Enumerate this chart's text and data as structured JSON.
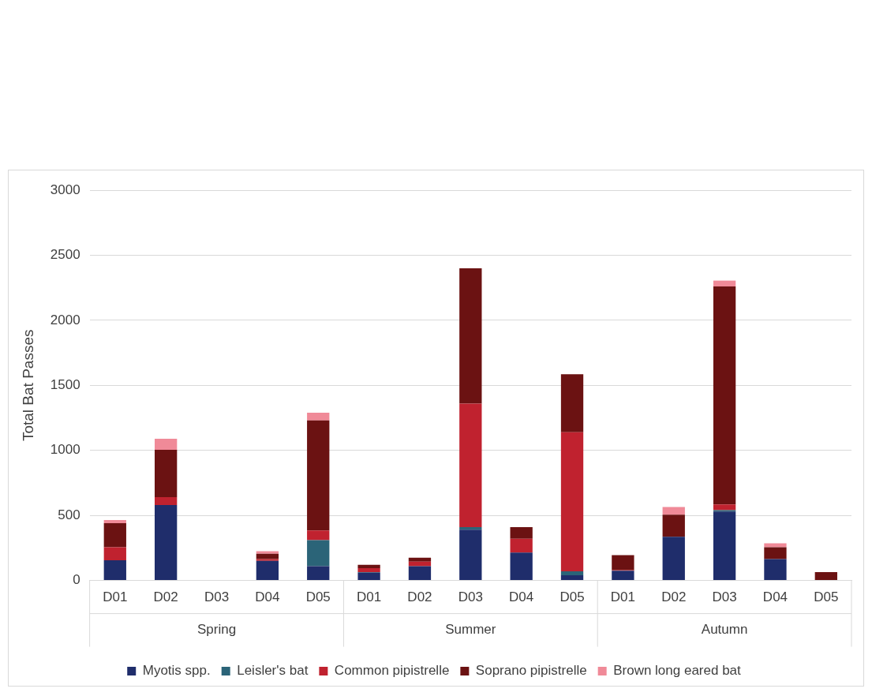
{
  "chart_data": {
    "type": "bar",
    "stacked": true,
    "ylabel": "Total Bat Passes",
    "categories": [
      "D01",
      "D02",
      "D03",
      "D04",
      "D05",
      "D01",
      "D02",
      "D03",
      "D04",
      "D05",
      "D01",
      "D02",
      "D03",
      "D04",
      "D05"
    ],
    "series": [
      {
        "name": "Myotis spp.",
        "color": "#1f2d6b",
        "values": [
          155,
          580,
          0,
          150,
          110,
          60,
          110,
          390,
          215,
          40,
          75,
          335,
          530,
          165,
          null
        ]
      },
      {
        "name": "Leisler's bat",
        "color": "#2b6478",
        "values": [
          0,
          0,
          0,
          0,
          200,
          5,
          null,
          20,
          0,
          30,
          0,
          0,
          10,
          null,
          0
        ]
      },
      {
        "name": "Common pipistrelle",
        "color": "#c0222f",
        "values": [
          100,
          60,
          0,
          15,
          75,
          30,
          35,
          950,
          105,
          1070,
          5,
          0,
          45,
          0,
          0
        ]
      },
      {
        "name": "Soprano pipistrelle",
        "color": "#6b1212",
        "values": [
          185,
          365,
          0,
          40,
          845,
          25,
          30,
          1040,
          90,
          445,
          115,
          170,
          1675,
          90,
          65
        ]
      },
      {
        "name": "Brown long eared bat",
        "color": "#f08a98",
        "values": [
          25,
          85,
          0,
          20,
          60,
          0,
          0,
          0,
          0,
          0,
          0,
          60,
          45,
          30,
          0
        ]
      }
    ],
    "annotations": [
      "Spring",
      "Summer",
      "Autumn"
    ],
    "ylim": [
      0,
      3000
    ],
    "yticks": [
      0,
      500,
      1000,
      1500,
      2000,
      2500,
      3000
    ],
    "grid": "y",
    "legend": "bottom"
  }
}
